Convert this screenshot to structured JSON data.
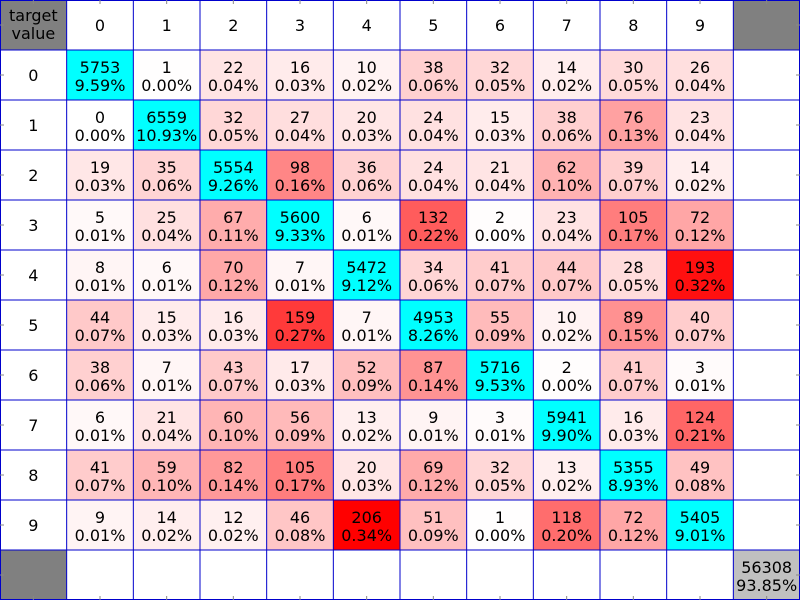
{
  "chart_data": {
    "type": "heatmap",
    "corner_label": [
      "target",
      "value"
    ],
    "col_labels": [
      "0",
      "1",
      "2",
      "3",
      "4",
      "5",
      "6",
      "7",
      "8",
      "9"
    ],
    "row_labels": [
      "0",
      "1",
      "2",
      "3",
      "4",
      "5",
      "6",
      "7",
      "8",
      "9"
    ],
    "counts": [
      [
        5753,
        1,
        22,
        16,
        10,
        38,
        32,
        14,
        30,
        26
      ],
      [
        0,
        6559,
        32,
        27,
        20,
        24,
        15,
        38,
        76,
        23
      ],
      [
        19,
        35,
        5554,
        98,
        36,
        24,
        21,
        62,
        39,
        14
      ],
      [
        5,
        25,
        67,
        5600,
        6,
        132,
        2,
        23,
        105,
        72
      ],
      [
        8,
        6,
        70,
        7,
        5472,
        34,
        41,
        44,
        28,
        193
      ],
      [
        44,
        15,
        16,
        159,
        7,
        4953,
        55,
        10,
        89,
        40
      ],
      [
        38,
        7,
        43,
        17,
        52,
        87,
        5716,
        2,
        41,
        3
      ],
      [
        6,
        21,
        60,
        56,
        13,
        9,
        3,
        5941,
        16,
        124
      ],
      [
        41,
        59,
        82,
        105,
        20,
        69,
        32,
        13,
        5355,
        49
      ],
      [
        9,
        14,
        12,
        46,
        206,
        51,
        1,
        118,
        72,
        5405
      ]
    ],
    "percents": [
      [
        "9.59%",
        "0.00%",
        "0.04%",
        "0.03%",
        "0.02%",
        "0.06%",
        "0.05%",
        "0.02%",
        "0.05%",
        "0.04%"
      ],
      [
        "0.00%",
        "10.93%",
        "0.05%",
        "0.04%",
        "0.03%",
        "0.04%",
        "0.03%",
        "0.06%",
        "0.13%",
        "0.04%"
      ],
      [
        "0.03%",
        "0.06%",
        "9.26%",
        "0.16%",
        "0.06%",
        "0.04%",
        "0.04%",
        "0.10%",
        "0.07%",
        "0.02%"
      ],
      [
        "0.01%",
        "0.04%",
        "0.11%",
        "9.33%",
        "0.01%",
        "0.22%",
        "0.00%",
        "0.04%",
        "0.17%",
        "0.12%"
      ],
      [
        "0.01%",
        "0.01%",
        "0.12%",
        "0.01%",
        "9.12%",
        "0.06%",
        "0.07%",
        "0.07%",
        "0.05%",
        "0.32%"
      ],
      [
        "0.07%",
        "0.03%",
        "0.03%",
        "0.27%",
        "0.01%",
        "8.26%",
        "0.09%",
        "0.02%",
        "0.15%",
        "0.07%"
      ],
      [
        "0.06%",
        "0.01%",
        "0.07%",
        "0.03%",
        "0.09%",
        "0.14%",
        "9.53%",
        "0.00%",
        "0.07%",
        "0.01%"
      ],
      [
        "0.01%",
        "0.04%",
        "0.10%",
        "0.09%",
        "0.02%",
        "0.01%",
        "0.01%",
        "9.90%",
        "0.03%",
        "0.21%"
      ],
      [
        "0.07%",
        "0.10%",
        "0.14%",
        "0.17%",
        "0.03%",
        "0.12%",
        "0.05%",
        "0.02%",
        "8.93%",
        "0.08%"
      ],
      [
        "0.01%",
        "0.02%",
        "0.02%",
        "0.08%",
        "0.34%",
        "0.09%",
        "0.00%",
        "0.20%",
        "0.12%",
        "9.01%"
      ]
    ],
    "total": {
      "count": "56308",
      "percent": "93.85%"
    },
    "colors": {
      "diagonal": "#00ffff",
      "zero_diagonal": "#008000",
      "off_diagonal_max": "#ff0000",
      "grid_line": "#0000cc",
      "header_bg": "#808080",
      "total_bg": "#c0c0c0",
      "background": "#ffffff"
    },
    "off_diagonal_max": 206
  }
}
